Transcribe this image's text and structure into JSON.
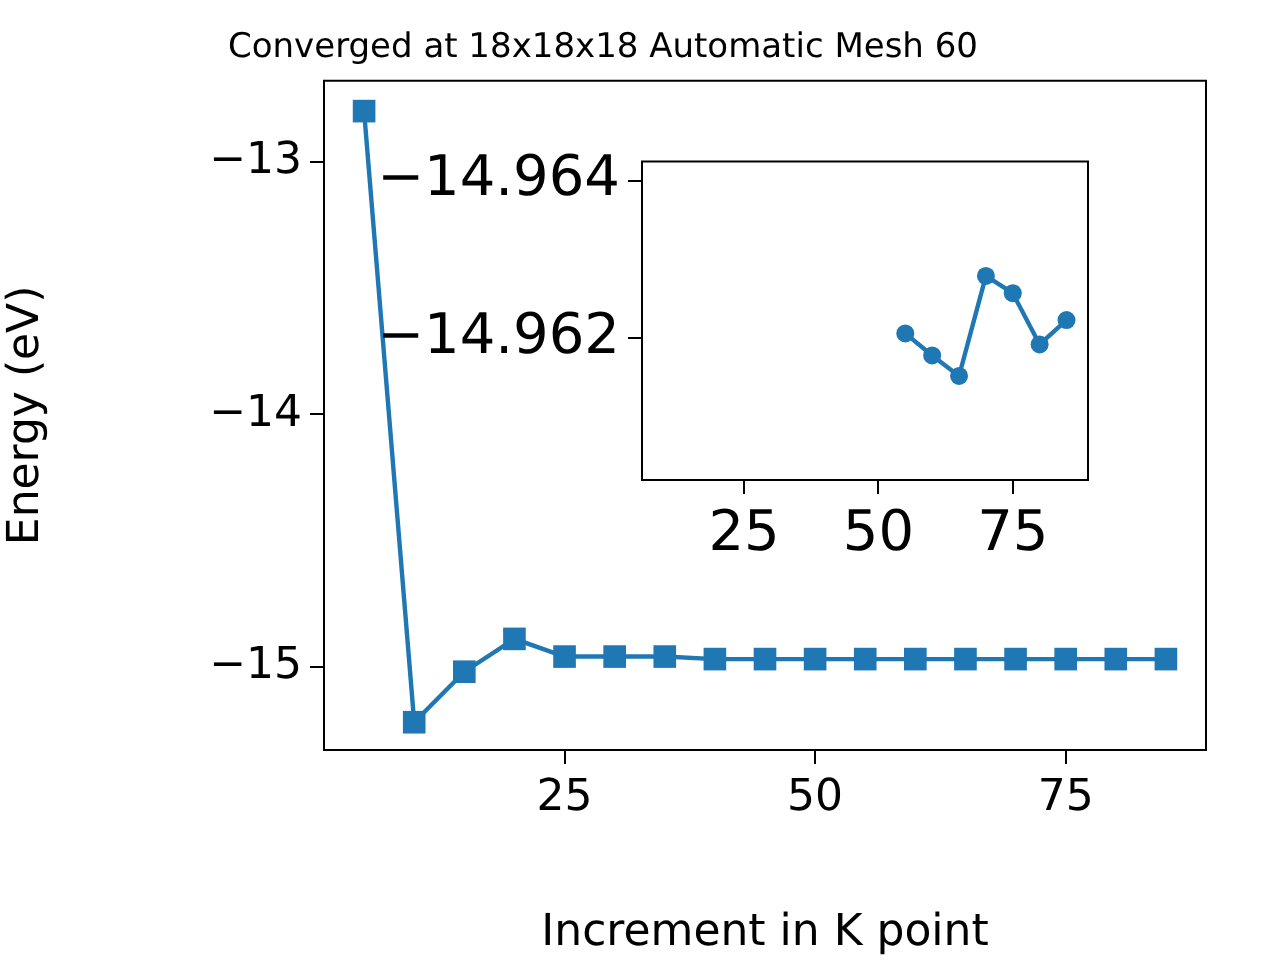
{
  "chart_data": [
    {
      "type": "line",
      "title": "Converged at 18x18x18 Automatic Mesh 60",
      "xlabel": "Increment in K point",
      "ylabel": "Energy (eV)",
      "x": [
        5,
        10,
        15,
        20,
        25,
        30,
        35,
        40,
        45,
        50,
        55,
        60,
        65,
        70,
        75,
        80,
        85
      ],
      "series": [
        {
          "color": "#1f77b4",
          "values": [
            -12.8,
            -15.22,
            -15.02,
            -14.89,
            -14.96,
            -14.96,
            -14.96,
            -14.97,
            -14.97,
            -14.97,
            -14.97,
            -14.97,
            -14.97,
            -14.97,
            -14.97,
            -14.97,
            -14.97
          ]
        }
      ],
      "xlim": [
        1,
        89
      ],
      "ylim": [
        -15.33,
        -12.68
      ],
      "xticks": [
        25,
        50,
        75
      ],
      "yticks": [
        -13,
        -14,
        -15
      ],
      "marker": "square",
      "grid": false,
      "legend": false
    },
    {
      "type": "line",
      "x": [
        55,
        60,
        65,
        70,
        75,
        80,
        85
      ],
      "series": [
        {
          "color": "#1f77b4",
          "values": [
            -14.96206,
            -14.96178,
            -14.96152,
            -14.96279,
            -14.96257,
            -14.96192,
            -14.96223
          ]
        }
      ],
      "xlim": [
        6,
        89
      ],
      "ylim": [
        -14.9602,
        -14.96424
      ],
      "xticks": [
        25,
        50,
        75
      ],
      "yticks": [
        -14.964,
        -14.962
      ],
      "marker": "circle",
      "grid": false,
      "legend": false
    }
  ]
}
